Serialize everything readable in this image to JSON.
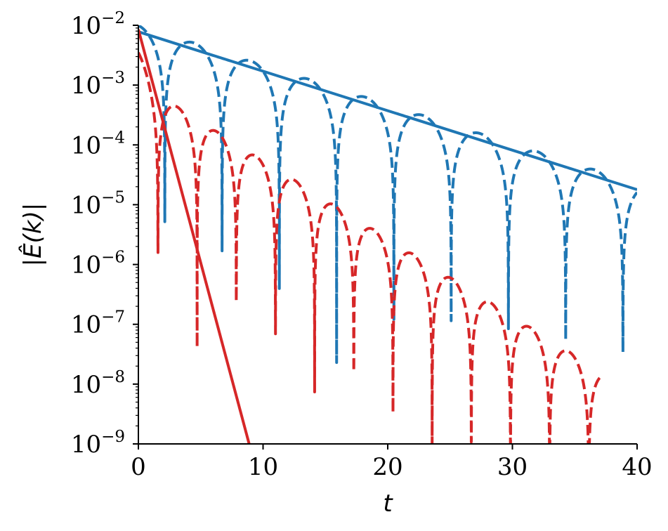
{
  "chart_data": {
    "type": "line",
    "title": "",
    "xlabel": "t",
    "ylabel": "|Ê(k)|",
    "xlim": [
      0,
      40
    ],
    "ylim": [
      1e-09,
      0.01
    ],
    "yscale": "log",
    "grid": false,
    "legend": "none",
    "x_ticks": [
      0,
      10,
      20,
      30,
      40
    ],
    "x_tick_labels": [
      "0",
      "10",
      "20",
      "30",
      "40"
    ],
    "y_ticks": [
      0.01,
      0.001,
      0.0001,
      1e-05,
      1e-06,
      1e-07,
      1e-08,
      1e-09
    ],
    "y_tick_labels": [
      {
        "base": "10",
        "exp": "−2"
      },
      {
        "base": "10",
        "exp": "−3"
      },
      {
        "base": "10",
        "exp": "−4"
      },
      {
        "base": "10",
        "exp": "−5"
      },
      {
        "base": "10",
        "exp": "−6"
      },
      {
        "base": "10",
        "exp": "−7"
      },
      {
        "base": "10",
        "exp": "−8"
      },
      {
        "base": "10",
        "exp": "−9"
      }
    ],
    "series": [
      {
        "color": "#1f77b4",
        "style": "dashed",
        "model": "oscillating",
        "t_range": [
          0,
          40
        ],
        "amplitude_at_0": 0.01,
        "decay_rate": 0.152,
        "frequency": 0.684,
        "phase": 0.12,
        "floor": 1e-09
      },
      {
        "color": "#1f77b4",
        "style": "solid",
        "model": "exponential",
        "t_range": [
          0,
          40
        ],
        "value_at_0": 0.0078,
        "decay_rate": 0.152
      },
      {
        "color": "#d62728",
        "style": "dashed",
        "model": "oscillating_two_stage",
        "t_range": [
          0,
          37.3
        ],
        "amplitude_at_0": 0.0035,
        "early_decay_rate": 0.95,
        "late_amplitude_at_0": 0.0011,
        "late_decay_rate": 0.3,
        "frequency": 1.0,
        "phase": 0.0,
        "floor": 1e-09
      },
      {
        "color": "#d62728",
        "style": "solid",
        "model": "exponential",
        "t_range": [
          0,
          8.9
        ],
        "value_at_0": 0.0085,
        "decay_rate": 1.796
      }
    ]
  }
}
